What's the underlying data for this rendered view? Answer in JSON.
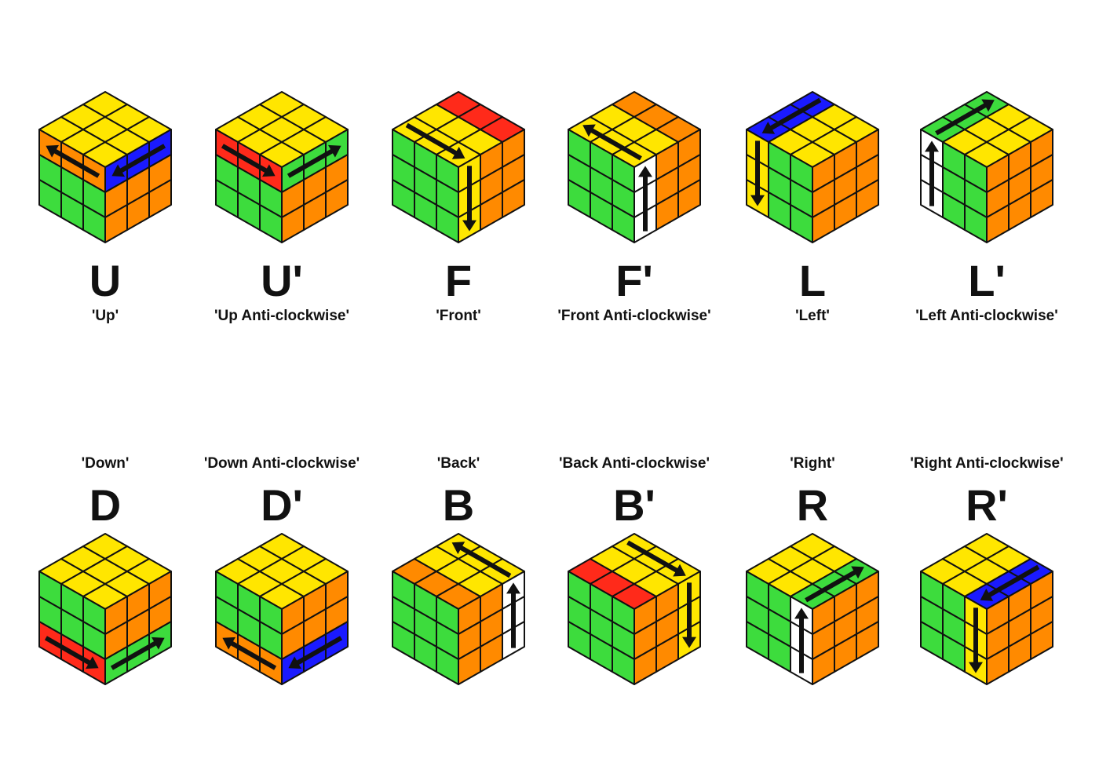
{
  "colors": {
    "Y": "#ffe600",
    "G": "#3ddc3d",
    "O": "#ff8a00",
    "R": "#ff2a1a",
    "B": "#1a1aff",
    "W": "#ffffff",
    "outline": "#111111"
  },
  "moves": [
    {
      "notation": "U",
      "label": "'Up'",
      "top": [
        "Y",
        "Y",
        "Y",
        "Y",
        "Y",
        "Y",
        "Y",
        "Y",
        "Y"
      ],
      "left": [
        "O",
        "O",
        "O",
        "G",
        "G",
        "G",
        "G",
        "G",
        "G"
      ],
      "right": [
        "B",
        "B",
        "B",
        "O",
        "O",
        "O",
        "O",
        "O",
        "O"
      ],
      "arrows": [
        "left-row0-rev",
        "right-row0-rev"
      ]
    },
    {
      "notation": "U'",
      "label": "'Up Anti-clockwise'",
      "top": [
        "Y",
        "Y",
        "Y",
        "Y",
        "Y",
        "Y",
        "Y",
        "Y",
        "Y"
      ],
      "left": [
        "R",
        "R",
        "R",
        "G",
        "G",
        "G",
        "G",
        "G",
        "G"
      ],
      "right": [
        "G",
        "G",
        "G",
        "O",
        "O",
        "O",
        "O",
        "O",
        "O"
      ],
      "arrows": [
        "left-row0",
        "right-row0"
      ]
    },
    {
      "notation": "F",
      "label": "'Front'",
      "top": [
        "Y",
        "Y",
        "Y",
        "Y",
        "Y",
        "Y",
        "R",
        "R",
        "R"
      ],
      "left": [
        "G",
        "G",
        "G",
        "G",
        "G",
        "G",
        "G",
        "G",
        "G"
      ],
      "right": [
        "Y",
        "O",
        "O",
        "Y",
        "O",
        "O",
        "Y",
        "O",
        "O"
      ],
      "arrows": [
        "top-frontrow",
        "right-col0-down"
      ]
    },
    {
      "notation": "F'",
      "label": "'Front Anti-clockwise'",
      "top": [
        "Y",
        "Y",
        "Y",
        "Y",
        "Y",
        "Y",
        "O",
        "O",
        "O"
      ],
      "left": [
        "G",
        "G",
        "G",
        "G",
        "G",
        "G",
        "G",
        "G",
        "G"
      ],
      "right": [
        "W",
        "O",
        "O",
        "W",
        "O",
        "O",
        "W",
        "O",
        "O"
      ],
      "arrows": [
        "top-frontrow-rev",
        "right-col0-up"
      ]
    },
    {
      "notation": "L",
      "label": "'Left'",
      "top": [
        "B",
        "Y",
        "Y",
        "B",
        "Y",
        "Y",
        "B",
        "Y",
        "Y"
      ],
      "left": [
        "Y",
        "G",
        "G",
        "Y",
        "G",
        "G",
        "Y",
        "G",
        "G"
      ],
      "right": [
        "O",
        "O",
        "O",
        "O",
        "O",
        "O",
        "O",
        "O",
        "O"
      ],
      "arrows": [
        "top-leftcol",
        "left-col0-down"
      ]
    },
    {
      "notation": "L'",
      "label": "'Left Anti-clockwise'",
      "top": [
        "G",
        "Y",
        "Y",
        "G",
        "Y",
        "Y",
        "G",
        "Y",
        "Y"
      ],
      "left": [
        "W",
        "G",
        "G",
        "W",
        "G",
        "G",
        "W",
        "G",
        "G"
      ],
      "right": [
        "O",
        "O",
        "O",
        "O",
        "O",
        "O",
        "O",
        "O",
        "O"
      ],
      "arrows": [
        "top-leftcol-rev",
        "left-col0-up"
      ]
    },
    {
      "notation": "D",
      "label": "'Down'",
      "top": [
        "Y",
        "Y",
        "Y",
        "Y",
        "Y",
        "Y",
        "Y",
        "Y",
        "Y"
      ],
      "left": [
        "G",
        "G",
        "G",
        "G",
        "G",
        "G",
        "R",
        "R",
        "R"
      ],
      "right": [
        "O",
        "O",
        "O",
        "O",
        "O",
        "O",
        "G",
        "G",
        "G"
      ],
      "arrows": [
        "left-row2",
        "right-row2"
      ]
    },
    {
      "notation": "D'",
      "label": "'Down Anti-clockwise'",
      "top": [
        "Y",
        "Y",
        "Y",
        "Y",
        "Y",
        "Y",
        "Y",
        "Y",
        "Y"
      ],
      "left": [
        "G",
        "G",
        "G",
        "G",
        "G",
        "G",
        "O",
        "O",
        "O"
      ],
      "right": [
        "O",
        "O",
        "O",
        "O",
        "O",
        "O",
        "B",
        "B",
        "B"
      ],
      "arrows": [
        "left-row2-rev",
        "right-row2-rev"
      ]
    },
    {
      "notation": "B",
      "label": "'Back'",
      "top": [
        "O",
        "O",
        "O",
        "Y",
        "Y",
        "Y",
        "Y",
        "Y",
        "Y"
      ],
      "left": [
        "G",
        "G",
        "G",
        "G",
        "G",
        "G",
        "G",
        "G",
        "G"
      ],
      "right": [
        "O",
        "O",
        "W",
        "O",
        "O",
        "W",
        "O",
        "O",
        "W"
      ],
      "arrows": [
        "top-backrow-rev",
        "right-col2-up"
      ]
    },
    {
      "notation": "B'",
      "label": "'Back Anti-clockwise'",
      "top": [
        "R",
        "R",
        "R",
        "Y",
        "Y",
        "Y",
        "Y",
        "Y",
        "Y"
      ],
      "left": [
        "G",
        "G",
        "G",
        "G",
        "G",
        "G",
        "G",
        "G",
        "G"
      ],
      "right": [
        "O",
        "O",
        "Y",
        "O",
        "O",
        "Y",
        "O",
        "O",
        "Y"
      ],
      "arrows": [
        "top-backrow",
        "right-col2-down"
      ]
    },
    {
      "notation": "R",
      "label": "'Right'",
      "top": [
        "Y",
        "Y",
        "G",
        "Y",
        "Y",
        "G",
        "Y",
        "Y",
        "G"
      ],
      "left": [
        "G",
        "G",
        "W",
        "G",
        "G",
        "W",
        "G",
        "G",
        "W"
      ],
      "right": [
        "O",
        "O",
        "O",
        "O",
        "O",
        "O",
        "O",
        "O",
        "O"
      ],
      "arrows": [
        "top-rightcol",
        "left-col2-up"
      ]
    },
    {
      "notation": "R'",
      "label": "'Right Anti-clockwise'",
      "top": [
        "Y",
        "Y",
        "B",
        "Y",
        "Y",
        "B",
        "Y",
        "Y",
        "B"
      ],
      "left": [
        "G",
        "G",
        "Y",
        "G",
        "G",
        "Y",
        "G",
        "G",
        "Y"
      ],
      "right": [
        "O",
        "O",
        "O",
        "O",
        "O",
        "O",
        "O",
        "O",
        "O"
      ],
      "arrows": [
        "top-rightcol-rev",
        "left-col2-down"
      ]
    }
  ]
}
